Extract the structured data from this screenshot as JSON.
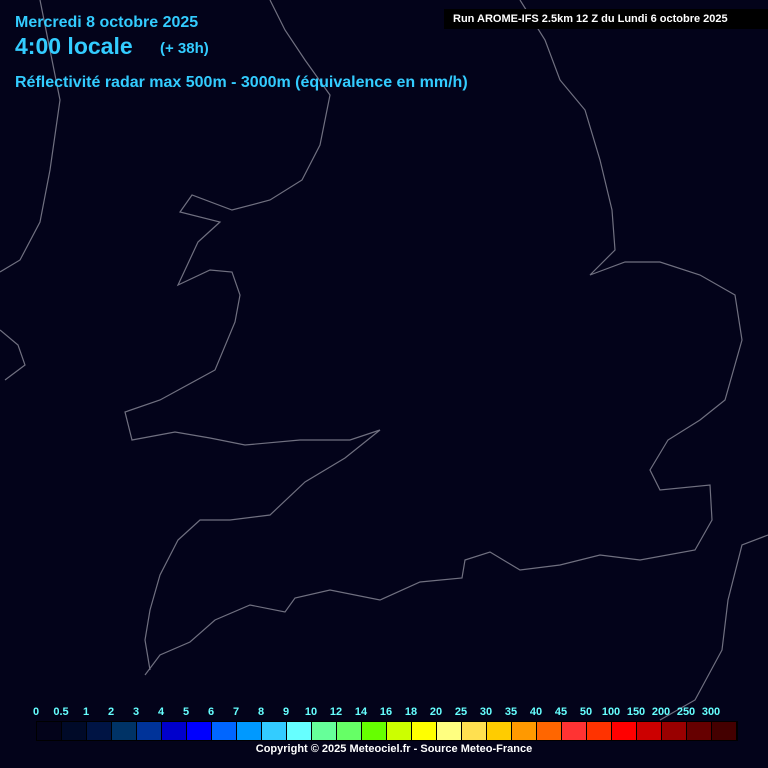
{
  "header": {
    "date": "Mercredi 8 octobre 2025",
    "time": "4:00 locale",
    "lead": "(+ 38h)",
    "parameter": "Réflectivité radar max 500m - 3000m (équivalence en mm/h)",
    "run": "Run AROME-IFS 2.5km 12 Z du Lundi 6 octobre 2025"
  },
  "legend": {
    "labels": [
      "0",
      "0.5",
      "1",
      "2",
      "3",
      "4",
      "5",
      "6",
      "7",
      "8",
      "9",
      "10",
      "12",
      "14",
      "16",
      "18",
      "20",
      "25",
      "30",
      "35",
      "40",
      "45",
      "50",
      "100",
      "150",
      "200",
      "250",
      "300"
    ],
    "colors": [
      "#03031a",
      "#000a28",
      "#001444",
      "#003366",
      "#003399",
      "#0000cc",
      "#0000ff",
      "#0066ff",
      "#0099ff",
      "#33ccff",
      "#66ffff",
      "#66ff99",
      "#66ff66",
      "#66ff00",
      "#ccff00",
      "#ffff00",
      "#ffff80",
      "#ffe050",
      "#ffcc00",
      "#ff9900",
      "#ff6600",
      "#ff3333",
      "#ff3300",
      "#ff0000",
      "#cc0000",
      "#990000",
      "#660000",
      "#440000"
    ]
  },
  "footer": {
    "copyright": "Copyright © 2025 Meteociel.fr - Source Meteo-France"
  }
}
